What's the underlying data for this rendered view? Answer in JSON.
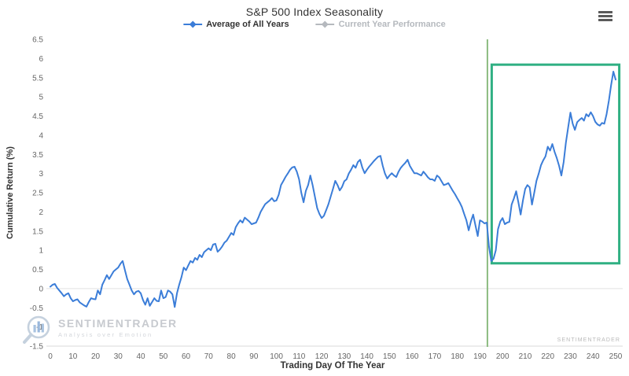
{
  "header": {
    "title": "S&P 500 Index Seasonality"
  },
  "legend": [
    {
      "label": "Average of All Years",
      "color": "#3b7dd8",
      "enabled": true
    },
    {
      "label": "Current Year Performance",
      "color": "#b5b9be",
      "enabled": false
    }
  ],
  "watermark": {
    "brand": "SENTIMENTRADER",
    "tagline": "Analysis over Emotion"
  },
  "footer_brand": "SENTIMENTRADER",
  "chart_data": {
    "type": "line",
    "title": "S&P 500 Index Seasonality",
    "xlabel": "Trading Day Of The Year",
    "ylabel": "Cumulative Return (%)",
    "xlim": [
      0,
      250
    ],
    "ylim": [
      -1.5,
      6.5
    ],
    "x_ticks": [
      0,
      10,
      20,
      30,
      40,
      50,
      60,
      70,
      80,
      90,
      100,
      110,
      120,
      130,
      140,
      150,
      160,
      170,
      180,
      190,
      200,
      210,
      220,
      230,
      240,
      250
    ],
    "y_ticks": [
      6.5,
      6,
      5.5,
      5,
      4.5,
      4,
      3.5,
      3,
      2.5,
      2,
      1.5,
      1,
      0.5,
      0,
      -0.5,
      -1,
      -1.5
    ],
    "grid": "zero-line-only",
    "legend_position": "top-center",
    "colors": {
      "line_blue": "#3b7dd8",
      "event_line_green": "#8cbb80",
      "highlight_box_green": "#30b083",
      "axis_text": "#666666",
      "axis_line": "#d8d8d8",
      "zero_line": "#e0e0e0",
      "title_text": "#333333"
    },
    "series": [
      {
        "name": "Average of All Years",
        "color": "#3b7dd8",
        "visible": true,
        "points": [
          [
            0,
            0.05
          ],
          [
            1,
            0.1
          ],
          [
            2,
            0.12
          ],
          [
            3,
            0.02
          ],
          [
            4,
            -0.05
          ],
          [
            5,
            -0.12
          ],
          [
            6,
            -0.2
          ],
          [
            7,
            -0.15
          ],
          [
            8,
            -0.12
          ],
          [
            9,
            -0.25
          ],
          [
            10,
            -0.33
          ],
          [
            11,
            -0.3
          ],
          [
            12,
            -0.28
          ],
          [
            13,
            -0.36
          ],
          [
            14,
            -0.4
          ],
          [
            15,
            -0.44
          ],
          [
            16,
            -0.47
          ],
          [
            17,
            -0.35
          ],
          [
            18,
            -0.25
          ],
          [
            19,
            -0.27
          ],
          [
            20,
            -0.28
          ],
          [
            21,
            -0.05
          ],
          [
            22,
            -0.15
          ],
          [
            23,
            0.1
          ],
          [
            24,
            0.22
          ],
          [
            25,
            0.35
          ],
          [
            26,
            0.25
          ],
          [
            27,
            0.35
          ],
          [
            28,
            0.45
          ],
          [
            29,
            0.5
          ],
          [
            30,
            0.55
          ],
          [
            31,
            0.65
          ],
          [
            32,
            0.72
          ],
          [
            33,
            0.48
          ],
          [
            34,
            0.25
          ],
          [
            35,
            0.1
          ],
          [
            36,
            -0.05
          ],
          [
            37,
            -0.15
          ],
          [
            38,
            -0.08
          ],
          [
            39,
            -0.06
          ],
          [
            40,
            -0.12
          ],
          [
            41,
            -0.3
          ],
          [
            42,
            -0.42
          ],
          [
            43,
            -0.25
          ],
          [
            44,
            -0.45
          ],
          [
            45,
            -0.35
          ],
          [
            46,
            -0.25
          ],
          [
            47,
            -0.32
          ],
          [
            48,
            -0.33
          ],
          [
            49,
            -0.05
          ],
          [
            50,
            -0.25
          ],
          [
            51,
            -0.22
          ],
          [
            52,
            -0.05
          ],
          [
            53,
            -0.08
          ],
          [
            54,
            -0.15
          ],
          [
            55,
            -0.48
          ],
          [
            56,
            -0.12
          ],
          [
            57,
            0.1
          ],
          [
            58,
            0.3
          ],
          [
            59,
            0.55
          ],
          [
            60,
            0.48
          ],
          [
            61,
            0.6
          ],
          [
            62,
            0.72
          ],
          [
            63,
            0.68
          ],
          [
            64,
            0.8
          ],
          [
            65,
            0.75
          ],
          [
            66,
            0.88
          ],
          [
            67,
            0.82
          ],
          [
            68,
            0.95
          ],
          [
            69,
            1.0
          ],
          [
            70,
            1.05
          ],
          [
            71,
            1.0
          ],
          [
            72,
            1.15
          ],
          [
            73,
            1.17
          ],
          [
            74,
            0.96
          ],
          [
            75,
            1.02
          ],
          [
            76,
            1.1
          ],
          [
            77,
            1.2
          ],
          [
            78,
            1.25
          ],
          [
            79,
            1.35
          ],
          [
            80,
            1.45
          ],
          [
            81,
            1.4
          ],
          [
            82,
            1.6
          ],
          [
            83,
            1.7
          ],
          [
            84,
            1.78
          ],
          [
            85,
            1.72
          ],
          [
            86,
            1.85
          ],
          [
            87,
            1.8
          ],
          [
            88,
            1.75
          ],
          [
            89,
            1.68
          ],
          [
            90,
            1.7
          ],
          [
            91,
            1.72
          ],
          [
            92,
            1.85
          ],
          [
            93,
            2.0
          ],
          [
            94,
            2.1
          ],
          [
            95,
            2.2
          ],
          [
            96,
            2.25
          ],
          [
            97,
            2.3
          ],
          [
            98,
            2.36
          ],
          [
            99,
            2.28
          ],
          [
            100,
            2.3
          ],
          [
            101,
            2.45
          ],
          [
            102,
            2.7
          ],
          [
            103,
            2.8
          ],
          [
            104,
            2.91
          ],
          [
            105,
            3.0
          ],
          [
            106,
            3.1
          ],
          [
            107,
            3.16
          ],
          [
            108,
            3.18
          ],
          [
            109,
            3.05
          ],
          [
            110,
            2.85
          ],
          [
            111,
            2.5
          ],
          [
            112,
            2.25
          ],
          [
            113,
            2.55
          ],
          [
            114,
            2.7
          ],
          [
            115,
            2.95
          ],
          [
            116,
            2.7
          ],
          [
            117,
            2.4
          ],
          [
            118,
            2.1
          ],
          [
            119,
            1.95
          ],
          [
            120,
            1.84
          ],
          [
            121,
            1.9
          ],
          [
            122,
            2.05
          ],
          [
            123,
            2.2
          ],
          [
            124,
            2.4
          ],
          [
            125,
            2.6
          ],
          [
            126,
            2.81
          ],
          [
            127,
            2.7
          ],
          [
            128,
            2.56
          ],
          [
            129,
            2.65
          ],
          [
            130,
            2.8
          ],
          [
            131,
            2.85
          ],
          [
            132,
            3.0
          ],
          [
            133,
            3.1
          ],
          [
            134,
            3.22
          ],
          [
            135,
            3.15
          ],
          [
            136,
            3.3
          ],
          [
            137,
            3.36
          ],
          [
            138,
            3.15
          ],
          [
            139,
            3.01
          ],
          [
            140,
            3.1
          ],
          [
            141,
            3.18
          ],
          [
            142,
            3.25
          ],
          [
            143,
            3.32
          ],
          [
            144,
            3.38
          ],
          [
            145,
            3.44
          ],
          [
            146,
            3.46
          ],
          [
            147,
            3.2
          ],
          [
            148,
            3.0
          ],
          [
            149,
            2.87
          ],
          [
            150,
            2.95
          ],
          [
            151,
            3.01
          ],
          [
            152,
            2.95
          ],
          [
            153,
            2.91
          ],
          [
            154,
            3.05
          ],
          [
            155,
            3.15
          ],
          [
            156,
            3.22
          ],
          [
            157,
            3.28
          ],
          [
            158,
            3.36
          ],
          [
            159,
            3.2
          ],
          [
            160,
            3.1
          ],
          [
            161,
            3.01
          ],
          [
            162,
            3.01
          ],
          [
            163,
            2.98
          ],
          [
            164,
            2.95
          ],
          [
            165,
            3.05
          ],
          [
            166,
            2.98
          ],
          [
            167,
            2.9
          ],
          [
            168,
            2.85
          ],
          [
            169,
            2.85
          ],
          [
            170,
            2.81
          ],
          [
            171,
            2.95
          ],
          [
            172,
            2.9
          ],
          [
            173,
            2.8
          ],
          [
            174,
            2.7
          ],
          [
            175,
            2.72
          ],
          [
            176,
            2.75
          ],
          [
            177,
            2.65
          ],
          [
            178,
            2.55
          ],
          [
            179,
            2.46
          ],
          [
            180,
            2.35
          ],
          [
            181,
            2.25
          ],
          [
            182,
            2.13
          ],
          [
            183,
            1.95
          ],
          [
            184,
            1.78
          ],
          [
            185,
            1.52
          ],
          [
            186,
            1.75
          ],
          [
            187,
            1.93
          ],
          [
            188,
            1.65
          ],
          [
            189,
            1.37
          ],
          [
            190,
            1.78
          ],
          [
            191,
            1.75
          ],
          [
            192,
            1.7
          ],
          [
            193,
            1.72
          ],
          [
            194,
            1.1
          ],
          [
            195,
            0.72
          ],
          [
            196,
            0.78
          ],
          [
            197,
            1.0
          ],
          [
            198,
            1.55
          ],
          [
            199,
            1.75
          ],
          [
            200,
            1.84
          ],
          [
            201,
            1.68
          ],
          [
            202,
            1.72
          ],
          [
            203,
            1.74
          ],
          [
            204,
            2.19
          ],
          [
            205,
            2.35
          ],
          [
            206,
            2.54
          ],
          [
            207,
            2.25
          ],
          [
            208,
            1.93
          ],
          [
            209,
            2.3
          ],
          [
            210,
            2.6
          ],
          [
            211,
            2.7
          ],
          [
            212,
            2.64
          ],
          [
            213,
            2.19
          ],
          [
            214,
            2.5
          ],
          [
            215,
            2.81
          ],
          [
            216,
            3.0
          ],
          [
            217,
            3.22
          ],
          [
            218,
            3.35
          ],
          [
            219,
            3.45
          ],
          [
            220,
            3.7
          ],
          [
            221,
            3.6
          ],
          [
            222,
            3.77
          ],
          [
            223,
            3.57
          ],
          [
            224,
            3.4
          ],
          [
            225,
            3.2
          ],
          [
            226,
            2.95
          ],
          [
            227,
            3.3
          ],
          [
            228,
            3.8
          ],
          [
            229,
            4.2
          ],
          [
            230,
            4.59
          ],
          [
            231,
            4.3
          ],
          [
            232,
            4.14
          ],
          [
            233,
            4.34
          ],
          [
            234,
            4.4
          ],
          [
            235,
            4.45
          ],
          [
            236,
            4.38
          ],
          [
            237,
            4.55
          ],
          [
            238,
            4.49
          ],
          [
            239,
            4.6
          ],
          [
            240,
            4.5
          ],
          [
            241,
            4.35
          ],
          [
            242,
            4.28
          ],
          [
            243,
            4.25
          ],
          [
            244,
            4.32
          ],
          [
            245,
            4.3
          ],
          [
            246,
            4.55
          ],
          [
            247,
            4.9
          ],
          [
            248,
            5.3
          ],
          [
            249,
            5.66
          ],
          [
            250,
            5.45
          ]
        ]
      },
      {
        "name": "Current Year Performance",
        "color": "#b5b9be",
        "visible": false,
        "points": []
      }
    ],
    "annotations": {
      "vline": {
        "x": 193.3,
        "color": "#8cbb80"
      },
      "highlight_box": {
        "x0": 195.2,
        "x1": 251.6,
        "y0": 0.66,
        "y1": 5.84,
        "color": "#30b083"
      }
    }
  }
}
